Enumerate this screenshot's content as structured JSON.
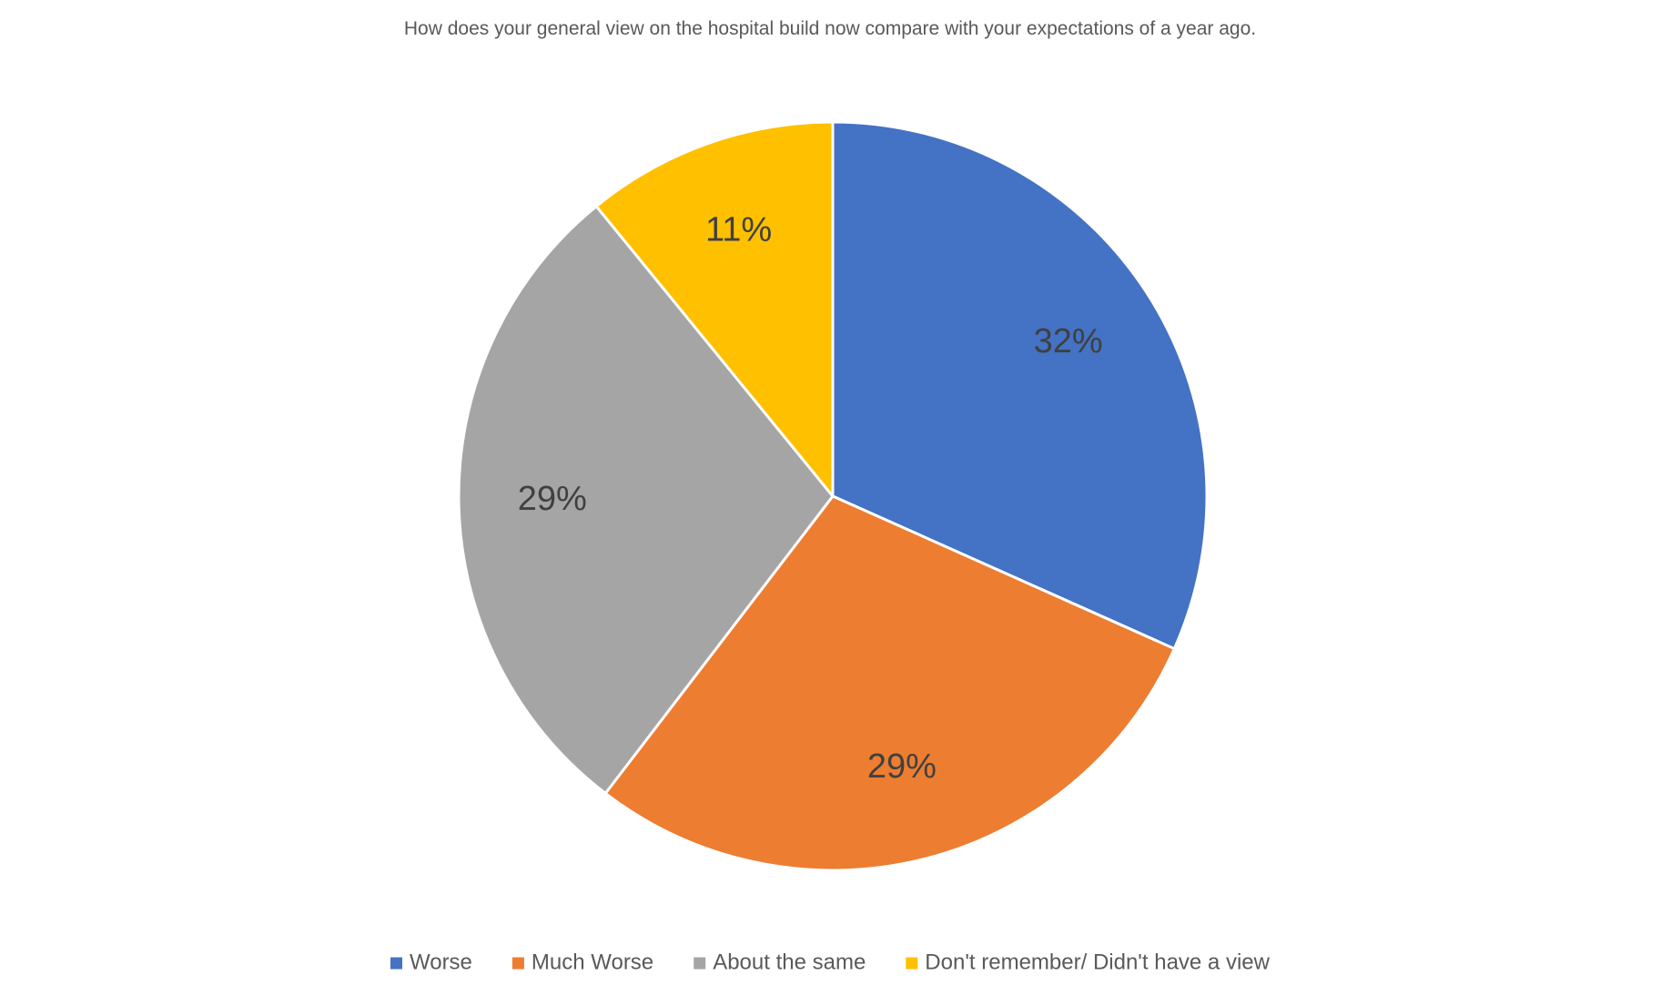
{
  "chart_data": {
    "type": "pie",
    "title": "How does  your general  view on the hospital build  now compare with your expectations of a year ago.",
    "categories": [
      "Worse",
      "Much Worse",
      "About the same",
      "Don't remember/ Didn't have a view"
    ],
    "values": [
      32,
      29,
      29,
      11
    ],
    "data_labels": [
      "32%",
      "29%",
      "29%",
      "11%"
    ],
    "colors": [
      "#4472C4",
      "#ED7D31",
      "#A5A5A5",
      "#FFC000"
    ],
    "start_angle_deg": 0,
    "direction": "clockwise",
    "legend_position": "bottom"
  }
}
